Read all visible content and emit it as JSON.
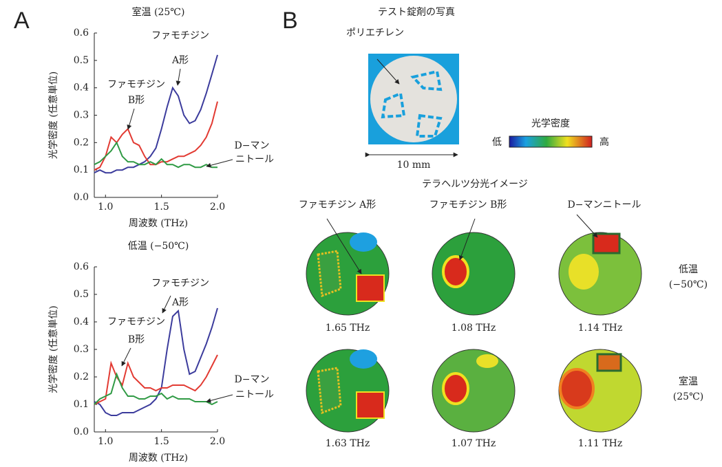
{
  "panel_labels": [
    "A",
    "B"
  ],
  "chart_data": [
    {
      "type": "line",
      "title": "室温 (25℃)",
      "x_label": "周波数 (THz)",
      "y_label": "光学密度 (任意単位)",
      "x": [
        0.9,
        0.95,
        1.0,
        1.05,
        1.1,
        1.15,
        1.2,
        1.25,
        1.3,
        1.35,
        1.4,
        1.45,
        1.5,
        1.55,
        1.6,
        1.65,
        1.7,
        1.75,
        1.8,
        1.85,
        1.9,
        1.95,
        2.0
      ],
      "series": [
        {
          "color": "#3b3b9c",
          "values": [
            0.09,
            0.1,
            0.09,
            0.09,
            0.1,
            0.1,
            0.11,
            0.11,
            0.12,
            0.13,
            0.15,
            0.18,
            0.25,
            0.33,
            0.4,
            0.37,
            0.3,
            0.27,
            0.28,
            0.32,
            0.38,
            0.45,
            0.52
          ]
        },
        {
          "color": "#e23a32",
          "values": [
            0.1,
            0.11,
            0.15,
            0.22,
            0.2,
            0.23,
            0.25,
            0.2,
            0.19,
            0.15,
            0.12,
            0.12,
            0.13,
            0.13,
            0.14,
            0.15,
            0.15,
            0.16,
            0.17,
            0.19,
            0.22,
            0.27,
            0.35
          ]
        },
        {
          "color": "#2f9a44",
          "values": [
            0.12,
            0.13,
            0.15,
            0.17,
            0.2,
            0.15,
            0.13,
            0.13,
            0.12,
            0.12,
            0.13,
            0.12,
            0.14,
            0.12,
            0.12,
            0.11,
            0.12,
            0.12,
            0.11,
            0.11,
            0.12,
            0.11,
            0.11
          ]
        }
      ],
      "annotations": [
        {
          "lines": [
            "ファモチジン",
            "A形"
          ]
        },
        {
          "lines": [
            "ファモチジン",
            "B形"
          ]
        },
        {
          "lines": [
            "D−マン",
            "ニトール"
          ]
        }
      ],
      "xlim": [
        0.9,
        2.0
      ],
      "xticks": [
        {
          "value": 1,
          "label": "1.0"
        },
        1.5,
        {
          "value": 2,
          "label": "2.0"
        }
      ],
      "ylim": [
        0,
        0.6
      ],
      "yticks": [
        {
          "value": 0,
          "label": "0.0"
        },
        0.1,
        0.2,
        0.3,
        0.4,
        0.5,
        0.6
      ]
    },
    {
      "type": "line",
      "title": "低温 (−50℃)",
      "x_label": "周波数 (THz)",
      "y_label": "光学密度 (任意単位)",
      "x": [
        0.9,
        0.95,
        1.0,
        1.05,
        1.1,
        1.15,
        1.2,
        1.25,
        1.3,
        1.35,
        1.4,
        1.45,
        1.5,
        1.55,
        1.6,
        1.65,
        1.7,
        1.75,
        1.8,
        1.85,
        1.9,
        1.95,
        2.0
      ],
      "series": [
        {
          "color": "#3b3b9c",
          "values": [
            0.11,
            0.1,
            0.07,
            0.06,
            0.06,
            0.07,
            0.07,
            0.07,
            0.08,
            0.09,
            0.1,
            0.12,
            0.16,
            0.3,
            0.42,
            0.44,
            0.3,
            0.21,
            0.22,
            0.27,
            0.32,
            0.38,
            0.45
          ]
        },
        {
          "color": "#e23a32",
          "values": [
            0.1,
            0.11,
            0.12,
            0.25,
            0.2,
            0.17,
            0.25,
            0.2,
            0.18,
            0.16,
            0.16,
            0.15,
            0.16,
            0.16,
            0.17,
            0.17,
            0.17,
            0.16,
            0.15,
            0.17,
            0.2,
            0.24,
            0.28
          ]
        },
        {
          "color": "#2f9a44",
          "values": [
            0.1,
            0.12,
            0.13,
            0.14,
            0.21,
            0.16,
            0.13,
            0.13,
            0.12,
            0.12,
            0.13,
            0.13,
            0.14,
            0.12,
            0.13,
            0.12,
            0.12,
            0.12,
            0.11,
            0.11,
            0.11,
            0.1,
            0.11
          ]
        }
      ],
      "annotations": [
        {
          "lines": [
            "ファモチジン",
            "A形"
          ]
        },
        {
          "lines": [
            "ファモチジン",
            "B形"
          ]
        },
        {
          "lines": [
            "D−マン",
            "ニトール"
          ]
        }
      ],
      "xlim": [
        0.9,
        2.0
      ],
      "xticks": [
        {
          "value": 1,
          "label": "1.0"
        },
        1.5,
        {
          "value": 2,
          "label": "2.0"
        }
      ],
      "ylim": [
        0,
        0.6
      ],
      "yticks": [
        {
          "value": 0,
          "label": "0.0"
        },
        0.1,
        0.2,
        0.3,
        0.4,
        0.5,
        0.6
      ]
    }
  ],
  "panel_b": {
    "photo_title": "テスト錠剤の写真",
    "photo_label": "ポリエチレン",
    "scale": "10 mm",
    "colorbar": {
      "title": "光学密度",
      "low": "低",
      "high": "高"
    },
    "image_title": "テラヘルツ分光イメージ",
    "columns": [
      "ファモチジン A形",
      "ファモチジン B形",
      "D−マンニトール"
    ],
    "rows": [
      [
        "低温",
        "(−50℃)"
      ],
      [
        "室温",
        "(25℃)"
      ]
    ],
    "frequencies": [
      [
        "1.65 THz",
        "1.08 THz",
        "1.14 THz"
      ],
      [
        "1.63 THz",
        "1.07 THz",
        "1.11 THz"
      ]
    ]
  }
}
